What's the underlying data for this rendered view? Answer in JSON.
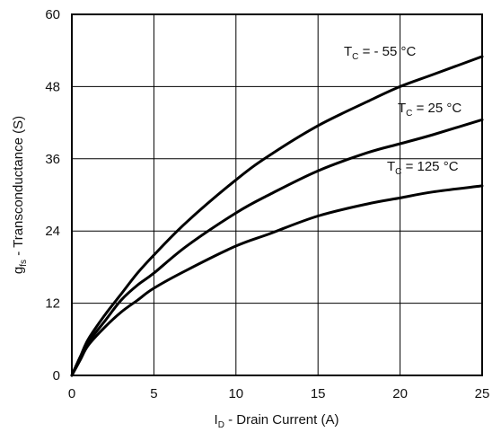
{
  "chart_data": {
    "type": "line",
    "xlabel": {
      "prefix": "I",
      "sub": "D",
      "rest": " - Drain Current (A)"
    },
    "ylabel": {
      "prefix": "g",
      "sub": "fs",
      "rest": " - Transconductance (S)"
    },
    "xlim": [
      0,
      25
    ],
    "ylim": [
      0,
      60
    ],
    "x_ticks": [
      0,
      5,
      10,
      15,
      20,
      25
    ],
    "y_ticks": [
      0,
      12,
      24,
      36,
      48,
      60
    ],
    "grid": true,
    "series": [
      {
        "name": "T_C = - 55 °C",
        "label": {
          "prefix": "T",
          "sub": "C",
          "rest": " = - 55 °C"
        },
        "x": [
          0,
          0.5,
          1,
          2,
          3,
          4,
          5,
          7,
          10,
          12,
          15,
          18,
          20,
          22,
          25
        ],
        "y": [
          0,
          3,
          6,
          10,
          13.5,
          17,
          20,
          25.5,
          32.5,
          36.5,
          41.5,
          45.5,
          48,
          50,
          53
        ]
      },
      {
        "name": "T_C = 25 °C",
        "label": {
          "prefix": "T",
          "sub": "C",
          "rest": " = 25 °C"
        },
        "x": [
          0,
          0.5,
          1,
          2,
          3,
          4,
          5,
          7,
          10,
          12,
          15,
          18,
          20,
          22,
          25
        ],
        "y": [
          0,
          3,
          5.5,
          9,
          12.5,
          15,
          17,
          21.5,
          27,
          30,
          34,
          37,
          38.5,
          40,
          42.5
        ]
      },
      {
        "name": "T_C = 125 °C",
        "label": {
          "prefix": "T",
          "sub": "C",
          "rest": " = 125 °C"
        },
        "x": [
          0,
          0.5,
          1,
          2,
          3,
          4,
          5,
          7,
          10,
          12,
          15,
          18,
          20,
          22,
          25
        ],
        "y": [
          0,
          2.5,
          5,
          8,
          10.5,
          12.5,
          14.5,
          17.5,
          21.5,
          23.5,
          26.5,
          28.5,
          29.5,
          30.5,
          31.5
        ]
      }
    ]
  }
}
